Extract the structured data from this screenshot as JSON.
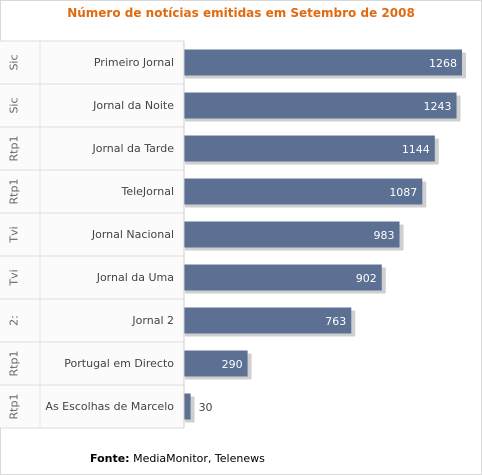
{
  "chart_data": {
    "type": "bar",
    "orientation": "horizontal",
    "title": "Número de notícias emitidas em Setembro de 2008",
    "groups": [
      "Sic",
      "Sic",
      "Rtp1",
      "Rtp1",
      "Tvi",
      "Tvi",
      "2:",
      "Rtp1",
      "Rtp1"
    ],
    "categories": [
      "Primeiro Jornal",
      "Jornal da Noite",
      "Jornal da Tarde",
      "TeleJornal",
      "Jornal Nacional",
      "Jornal da Uma",
      "Jornal 2",
      "Portugal em Directo",
      "As Escolhas de Marcelo"
    ],
    "values": [
      1268,
      1243,
      1144,
      1087,
      983,
      902,
      763,
      290,
      30
    ],
    "xlim": [
      0,
      1280
    ],
    "bar_color": "#5b7092",
    "grid": false
  },
  "source": {
    "label": "Fonte:",
    "text": "MediaMonitor, Telenews"
  }
}
